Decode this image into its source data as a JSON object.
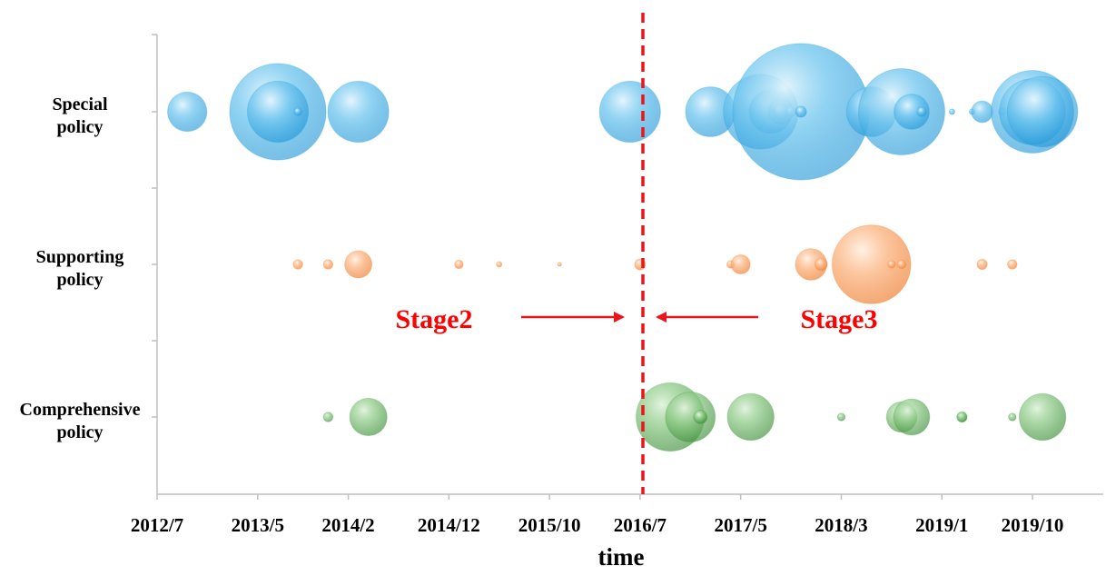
{
  "chart_data": {
    "type": "scatter",
    "subtype": "bubble-timeline",
    "xlabel": "time",
    "x_ticks": [
      "2012/7",
      "2013/5",
      "2014/2",
      "2014/12",
      "2015/10",
      "2016/7",
      "2017/5",
      "2018/3",
      "2019/1",
      "2019/10"
    ],
    "xlim": [
      "2012/7",
      "2019/10"
    ],
    "categories": [
      {
        "key": "special",
        "lines": [
          "Special",
          "policy"
        ]
      },
      {
        "key": "supporting",
        "lines": [
          "Supporting",
          "policy"
        ]
      },
      {
        "key": "comprehensive",
        "lines": [
          "Comprehensive",
          "policy"
        ]
      }
    ],
    "colors": {
      "special": "#1ba1e2",
      "supporting": "#f58a3c",
      "comprehensive": "#3e9a3c",
      "divider": "#e8151b",
      "axis": "#bfbfbf"
    },
    "divider": {
      "x": "2016/7",
      "style": "dashed"
    },
    "annotations": [
      {
        "label": "Stage2",
        "arrow": "right"
      },
      {
        "label": "Stage3",
        "arrow": "left"
      }
    ],
    "series": [
      {
        "name": "Special policy",
        "category": "special",
        "points": [
          {
            "x": "2012/10",
            "size": 5
          },
          {
            "x": "2013/7",
            "size": 30
          },
          {
            "x": "2013/7",
            "size": 12
          },
          {
            "x": "2013/9",
            "size": 0.2
          },
          {
            "x": "2014/3",
            "size": 12
          },
          {
            "x": "2016/6",
            "size": 12
          },
          {
            "x": "2017/2",
            "size": 8
          },
          {
            "x": "2017/7",
            "size": 18
          },
          {
            "x": "2017/8",
            "size": 6
          },
          {
            "x": "2017/9",
            "size": 2
          },
          {
            "x": "2017/9",
            "size": 0.8
          },
          {
            "x": "2017/10",
            "size": 0.3
          },
          {
            "x": "2017/11",
            "size": 60
          },
          {
            "x": "2017/11",
            "size": 0.4
          },
          {
            "x": "2018/6",
            "size": 8
          },
          {
            "x": "2018/9",
            "size": 24
          },
          {
            "x": "2018/10",
            "size": 4
          },
          {
            "x": "2018/11",
            "size": 0.3
          },
          {
            "x": "2019/2",
            "size": 0.1
          },
          {
            "x": "2019/4",
            "size": 0.1
          },
          {
            "x": "2019/5",
            "size": 1.5
          },
          {
            "x": "2019/7",
            "size": 0.2
          },
          {
            "x": "2019/10",
            "size": 22
          },
          {
            "x": "2019/10",
            "size": 14
          },
          {
            "x": "2019/11",
            "size": 16
          }
        ]
      },
      {
        "name": "Supporting policy",
        "category": "supporting",
        "points": [
          {
            "x": "2013/9",
            "size": 0.3
          },
          {
            "x": "2013/12",
            "size": 0.3
          },
          {
            "x": "2014/3",
            "size": 2.4
          },
          {
            "x": "2015/1",
            "size": 0.25
          },
          {
            "x": "2015/5",
            "size": 0.1
          },
          {
            "x": "2015/11",
            "size": 0.05
          },
          {
            "x": "2016/7",
            "size": 0.4
          },
          {
            "x": "2017/4",
            "size": 0.2
          },
          {
            "x": "2017/5",
            "size": 1.2
          },
          {
            "x": "2017/12",
            "size": 3.2
          },
          {
            "x": "2018/1",
            "size": 0.5
          },
          {
            "x": "2018/6",
            "size": 20
          },
          {
            "x": "2018/8",
            "size": 0.2
          },
          {
            "x": "2018/9",
            "size": 0.25
          },
          {
            "x": "2019/5",
            "size": 0.35
          },
          {
            "x": "2019/8",
            "size": 0.3
          }
        ]
      },
      {
        "name": "Comprehensive policy",
        "category": "comprehensive",
        "points": [
          {
            "x": "2013/12",
            "size": 0.3
          },
          {
            "x": "2014/4",
            "size": 4.5
          },
          {
            "x": "2016/10",
            "size": 15
          },
          {
            "x": "2016/12",
            "size": 8
          },
          {
            "x": "2017/1",
            "size": 0.5
          },
          {
            "x": "2017/1",
            "size": 0.6
          },
          {
            "x": "2017/6",
            "size": 7
          },
          {
            "x": "2018/3",
            "size": 0.2
          },
          {
            "x": "2018/9",
            "size": 3
          },
          {
            "x": "2018/10",
            "size": 4.2
          },
          {
            "x": "2019/3",
            "size": 0.3
          },
          {
            "x": "2019/3",
            "size": 0.35
          },
          {
            "x": "2019/8",
            "size": 0.2
          },
          {
            "x": "2019/11",
            "size": 7
          }
        ]
      }
    ]
  }
}
